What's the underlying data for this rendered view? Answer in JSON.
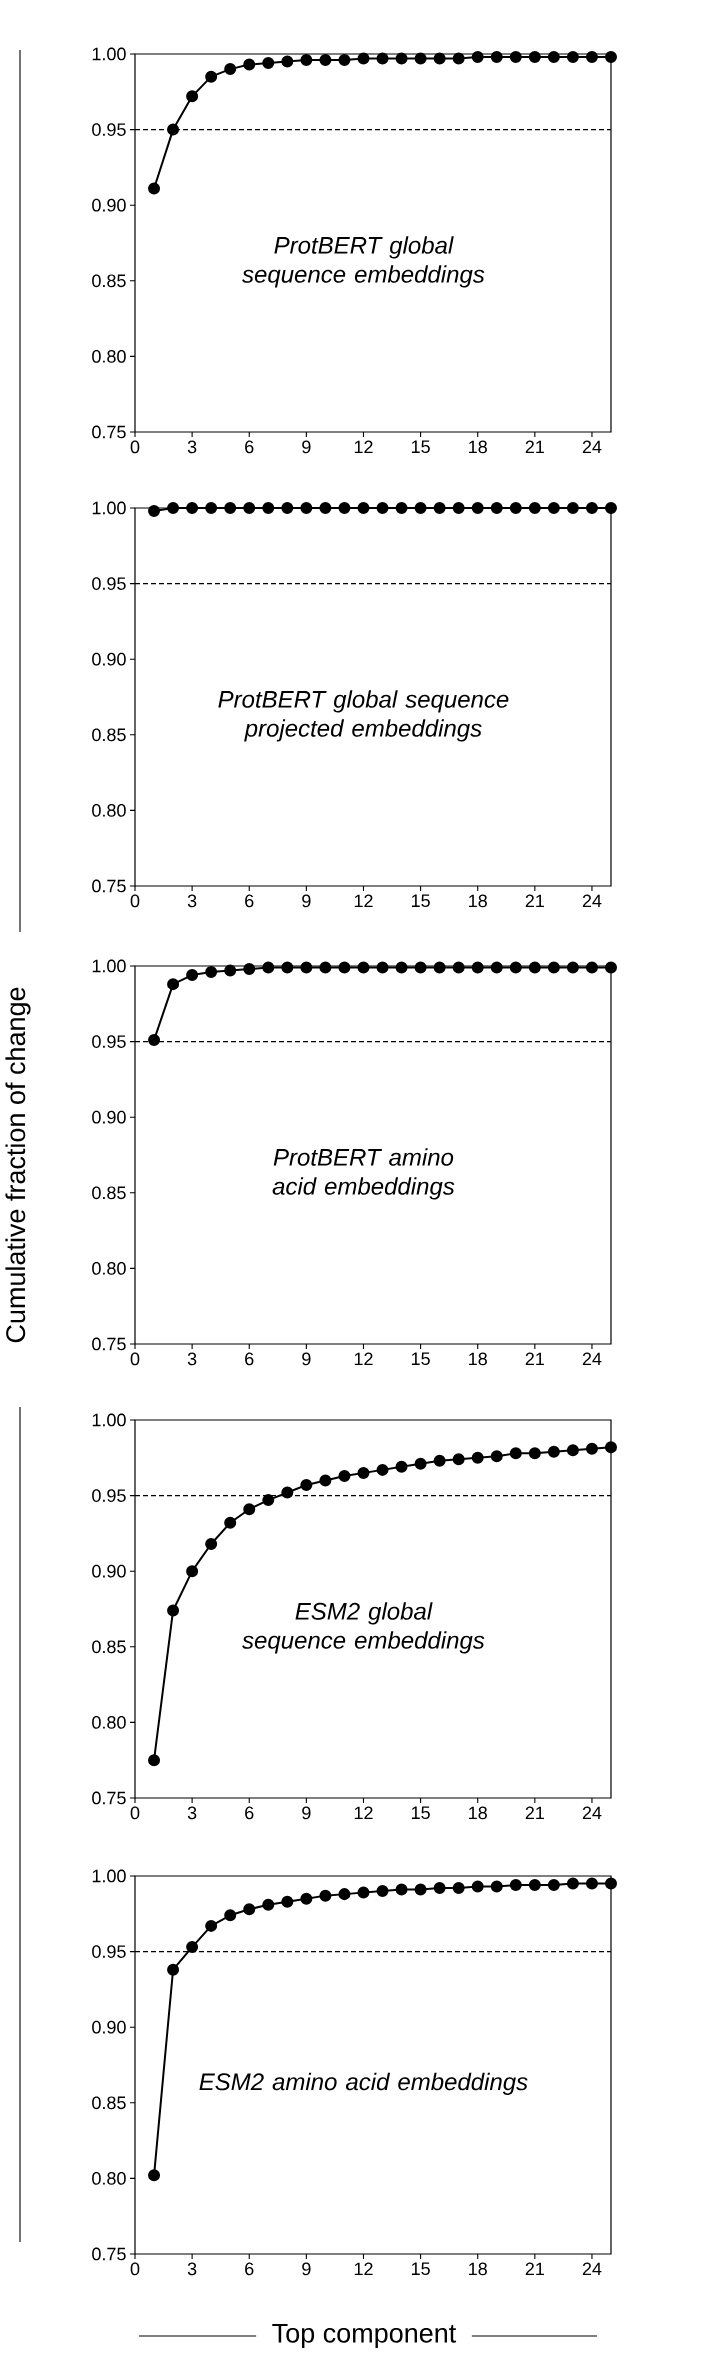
{
  "chart_data": [
    {
      "type": "line",
      "x": [
        1,
        2,
        3,
        4,
        5,
        6,
        7,
        8,
        9,
        10,
        11,
        12,
        13,
        14,
        15,
        16,
        17,
        18,
        19,
        20,
        21,
        22,
        23,
        24,
        25
      ],
      "series": [
        {
          "color": "#000000",
          "values": [
            0.911,
            0.95,
            0.972,
            0.985,
            0.99,
            0.993,
            0.994,
            0.995,
            0.996,
            0.996,
            0.996,
            0.997,
            0.997,
            0.997,
            0.997,
            0.997,
            0.997,
            0.998,
            0.998,
            0.998,
            0.998,
            0.998,
            0.998,
            0.998,
            0.998
          ]
        }
      ],
      "xlim": [
        0,
        25
      ],
      "ylim": [
        0.75,
        1.0
      ],
      "xticks": [
        0,
        3,
        6,
        9,
        12,
        15,
        18,
        21,
        24
      ],
      "yticks": [
        {
          "value": 0.75,
          "label": "0.75"
        },
        {
          "value": 0.8,
          "label": "0.80"
        },
        {
          "value": 0.85,
          "label": "0.85"
        },
        {
          "value": 0.9,
          "label": "0.90"
        },
        {
          "value": 0.95,
          "label": "0.95"
        },
        {
          "value": 1.0,
          "label": "1.00"
        }
      ],
      "marker": "circle",
      "line_style": "solid",
      "ref_lines": [
        {
          "axis": "y",
          "value": 0.95,
          "color": "#000000",
          "line_style": "dashed"
        }
      ],
      "annotations": [
        "ProtBERT global sequence embeddings"
      ]
    },
    {
      "type": "line",
      "x": [
        1,
        2,
        3,
        4,
        5,
        6,
        7,
        8,
        9,
        10,
        11,
        12,
        13,
        14,
        15,
        16,
        17,
        18,
        19,
        20,
        21,
        22,
        23,
        24,
        25
      ],
      "series": [
        {
          "color": "#000000",
          "values": [
            0.998,
            1.0,
            1.0,
            1.0,
            1.0,
            1.0,
            1.0,
            1.0,
            1.0,
            1.0,
            1.0,
            1.0,
            1.0,
            1.0,
            1.0,
            1.0,
            1.0,
            1.0,
            1.0,
            1.0,
            1.0,
            1.0,
            1.0,
            1.0,
            1.0
          ]
        }
      ],
      "xlim": [
        0,
        25
      ],
      "ylim": [
        0.75,
        1.0
      ],
      "xticks": [
        0,
        3,
        6,
        9,
        12,
        15,
        18,
        21,
        24
      ],
      "yticks": [
        {
          "value": 0.75,
          "label": "0.75"
        },
        {
          "value": 0.8,
          "label": "0.80"
        },
        {
          "value": 0.85,
          "label": "0.85"
        },
        {
          "value": 0.9,
          "label": "0.90"
        },
        {
          "value": 0.95,
          "label": "0.95"
        },
        {
          "value": 1.0,
          "label": "1.00"
        }
      ],
      "marker": "circle",
      "line_style": "solid",
      "ref_lines": [
        {
          "axis": "y",
          "value": 0.95,
          "color": "#000000",
          "line_style": "dashed"
        }
      ],
      "annotations": [
        "ProtBERT global sequence projected embeddings"
      ]
    },
    {
      "type": "line",
      "x": [
        1,
        2,
        3,
        4,
        5,
        6,
        7,
        8,
        9,
        10,
        11,
        12,
        13,
        14,
        15,
        16,
        17,
        18,
        19,
        20,
        21,
        22,
        23,
        24,
        25
      ],
      "series": [
        {
          "color": "#000000",
          "values": [
            0.951,
            0.988,
            0.994,
            0.996,
            0.997,
            0.998,
            0.999,
            0.999,
            0.999,
            0.999,
            0.999,
            0.999,
            0.999,
            0.999,
            0.999,
            0.999,
            0.999,
            0.999,
            0.999,
            0.999,
            0.999,
            0.999,
            0.999,
            0.999,
            0.999
          ]
        }
      ],
      "xlim": [
        0,
        25
      ],
      "ylim": [
        0.75,
        1.0
      ],
      "xticks": [
        0,
        3,
        6,
        9,
        12,
        15,
        18,
        21,
        24
      ],
      "yticks": [
        {
          "value": 0.75,
          "label": "0.75"
        },
        {
          "value": 0.8,
          "label": "0.80"
        },
        {
          "value": 0.85,
          "label": "0.85"
        },
        {
          "value": 0.9,
          "label": "0.90"
        },
        {
          "value": 0.95,
          "label": "0.95"
        },
        {
          "value": 1.0,
          "label": "1.00"
        }
      ],
      "marker": "circle",
      "line_style": "solid",
      "ylabel": "Cumulative fraction of change",
      "ref_lines": [
        {
          "axis": "y",
          "value": 0.95,
          "color": "#000000",
          "line_style": "dashed"
        }
      ],
      "annotations": [
        "ProtBERT amino acid embeddings"
      ]
    },
    {
      "type": "line",
      "x": [
        1,
        2,
        3,
        4,
        5,
        6,
        7,
        8,
        9,
        10,
        11,
        12,
        13,
        14,
        15,
        16,
        17,
        18,
        19,
        20,
        21,
        22,
        23,
        24,
        25
      ],
      "series": [
        {
          "color": "#000000",
          "values": [
            0.775,
            0.874,
            0.9,
            0.918,
            0.932,
            0.941,
            0.947,
            0.952,
            0.957,
            0.96,
            0.963,
            0.965,
            0.967,
            0.969,
            0.971,
            0.973,
            0.974,
            0.975,
            0.976,
            0.978,
            0.978,
            0.979,
            0.98,
            0.981,
            0.982
          ]
        }
      ],
      "xlim": [
        0,
        25
      ],
      "ylim": [
        0.75,
        1.0
      ],
      "xticks": [
        0,
        3,
        6,
        9,
        12,
        15,
        18,
        21,
        24
      ],
      "yticks": [
        {
          "value": 0.75,
          "label": "0.75"
        },
        {
          "value": 0.8,
          "label": "0.80"
        },
        {
          "value": 0.85,
          "label": "0.85"
        },
        {
          "value": 0.9,
          "label": "0.90"
        },
        {
          "value": 0.95,
          "label": "0.95"
        },
        {
          "value": 1.0,
          "label": "1.00"
        }
      ],
      "marker": "circle",
      "line_style": "solid",
      "ref_lines": [
        {
          "axis": "y",
          "value": 0.95,
          "color": "#000000",
          "line_style": "dashed"
        }
      ],
      "annotations": [
        "ESM2 global sequence embeddings"
      ]
    },
    {
      "type": "line",
      "x": [
        1,
        2,
        3,
        4,
        5,
        6,
        7,
        8,
        9,
        10,
        11,
        12,
        13,
        14,
        15,
        16,
        17,
        18,
        19,
        20,
        21,
        22,
        23,
        24,
        25
      ],
      "series": [
        {
          "color": "#000000",
          "values": [
            0.802,
            0.938,
            0.953,
            0.967,
            0.974,
            0.978,
            0.981,
            0.983,
            0.985,
            0.987,
            0.988,
            0.989,
            0.99,
            0.991,
            0.991,
            0.992,
            0.992,
            0.993,
            0.993,
            0.994,
            0.994,
            0.994,
            0.995,
            0.995,
            0.995
          ]
        }
      ],
      "xlim": [
        0,
        25
      ],
      "ylim": [
        0.75,
        1.0
      ],
      "xticks": [
        0,
        3,
        6,
        9,
        12,
        15,
        18,
        21,
        24
      ],
      "yticks": [
        {
          "value": 0.75,
          "label": "0.75"
        },
        {
          "value": 0.8,
          "label": "0.80"
        },
        {
          "value": 0.85,
          "label": "0.85"
        },
        {
          "value": 0.9,
          "label": "0.90"
        },
        {
          "value": 0.95,
          "label": "0.95"
        },
        {
          "value": 1.0,
          "label": "1.00"
        }
      ],
      "marker": "circle",
      "line_style": "solid",
      "xlabel": "Top component",
      "ref_lines": [
        {
          "axis": "y",
          "value": 0.95,
          "color": "#000000",
          "line_style": "dashed"
        }
      ],
      "annotations": [
        "ESM2 amino acid embeddings"
      ]
    }
  ]
}
